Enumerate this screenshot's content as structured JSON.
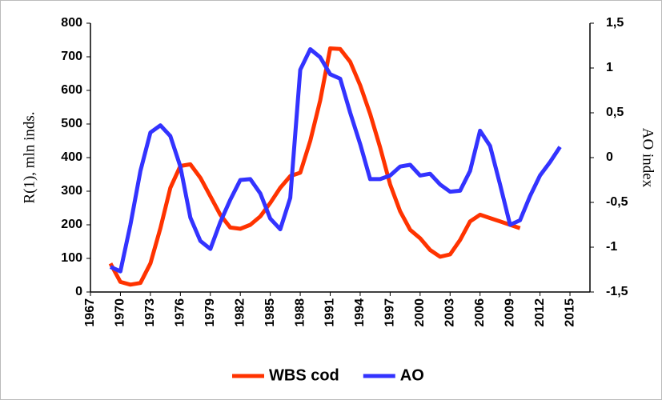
{
  "chart_data": {
    "type": "line",
    "ylabel": "R(1), mln inds.",
    "y2label": "AO index",
    "x": [
      1969,
      1970,
      1971,
      1972,
      1973,
      1974,
      1975,
      1976,
      1977,
      1978,
      1979,
      1980,
      1981,
      1982,
      1983,
      1984,
      1985,
      1986,
      1987,
      1988,
      1989,
      1990,
      1991,
      1992,
      1993,
      1994,
      1995,
      1996,
      1997,
      1998,
      1999,
      2000,
      2001,
      2002,
      2003,
      2004,
      2005,
      2006,
      2007,
      2008,
      2009,
      2010,
      2011,
      2012,
      2013,
      2014
    ],
    "series": [
      {
        "name": "WBS cod",
        "color": "#ff3300",
        "values": [
          85,
          30,
          22,
          27,
          85,
          190,
          310,
          375,
          380,
          340,
          285,
          230,
          192,
          188,
          200,
          225,
          265,
          310,
          345,
          355,
          450,
          570,
          725,
          723,
          685,
          615,
          530,
          430,
          320,
          240,
          185,
          160,
          125,
          105,
          112,
          155,
          210,
          230,
          220,
          210,
          200,
          190,
          null,
          null,
          null,
          null
        ]
      },
      {
        "name": "AO",
        "color": "#3333ff",
        "axis": "y2",
        "values": [
          -1.22,
          -1.27,
          -0.75,
          -0.15,
          0.28,
          0.36,
          0.24,
          -0.1,
          -0.67,
          -0.93,
          -1.02,
          -0.72,
          -0.47,
          -0.25,
          -0.24,
          -0.4,
          -0.68,
          -0.8,
          -0.45,
          0.98,
          1.21,
          1.12,
          0.93,
          0.88,
          0.5,
          0.15,
          -0.24,
          -0.24,
          -0.2,
          -0.1,
          -0.08,
          -0.2,
          -0.18,
          -0.3,
          -0.38,
          -0.37,
          -0.15,
          0.3,
          0.13,
          -0.3,
          -0.75,
          -0.7,
          -0.43,
          -0.2,
          -0.05,
          0.12
        ]
      }
    ],
    "xlim": [
      1967,
      2017
    ],
    "xticks": [
      1967,
      1970,
      1973,
      1976,
      1979,
      1982,
      1985,
      1988,
      1991,
      1994,
      1997,
      2000,
      2003,
      2006,
      2009,
      2012,
      2015
    ],
    "ylim": [
      0,
      800
    ],
    "yticks": [
      0,
      100,
      200,
      300,
      400,
      500,
      600,
      700,
      800
    ],
    "y2lim": [
      -1.5,
      1.5
    ],
    "y2ticks": [
      {
        "value": -1.5,
        "label": "-1,5"
      },
      -1,
      {
        "value": -0.5,
        "label": "-0,5"
      },
      0,
      {
        "value": 0.5,
        "label": "0,5"
      },
      1,
      {
        "value": 1.5,
        "label": "1,5"
      }
    ],
    "legend": "bottom"
  }
}
